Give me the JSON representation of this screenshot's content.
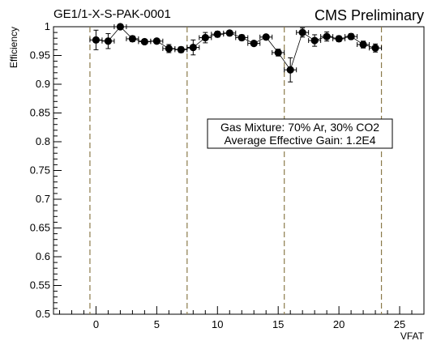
{
  "chart_data": {
    "type": "scatter",
    "title_left": "GE1/1-X-S-PAK-0001",
    "title_right": "CMS Preliminary",
    "xlabel": "VFAT",
    "ylabel": "Efficiency",
    "xlim": [
      -3.5,
      27
    ],
    "ylim": [
      0.5,
      1.0
    ],
    "xticks": [
      0,
      5,
      10,
      15,
      20,
      25
    ],
    "xtick_labels": [
      "0",
      "5",
      "10",
      "15",
      "20",
      "25"
    ],
    "yticks": [
      0.5,
      0.55,
      0.6,
      0.65,
      0.7,
      0.75,
      0.8,
      0.85,
      0.9,
      0.95,
      1.0
    ],
    "ytick_labels": [
      "0.5",
      "0.55",
      "0.6",
      "0.65",
      "0.7",
      "0.75",
      "0.8",
      "0.85",
      "0.9",
      "0.95",
      "1"
    ],
    "grid": false,
    "x_error": 0.5,
    "points": [
      {
        "x": 0,
        "y": 0.977,
        "yerr": 0.017
      },
      {
        "x": 1,
        "y": 0.975,
        "yerr": 0.013
      },
      {
        "x": 2,
        "y": 1.0,
        "yerr": 0.0
      },
      {
        "x": 3,
        "y": 0.979,
        "yerr": 0.005
      },
      {
        "x": 4,
        "y": 0.974,
        "yerr": 0.004
      },
      {
        "x": 5,
        "y": 0.975,
        "yerr": 0.004
      },
      {
        "x": 6,
        "y": 0.962,
        "yerr": 0.007
      },
      {
        "x": 7,
        "y": 0.96,
        "yerr": 0.005
      },
      {
        "x": 8,
        "y": 0.964,
        "yerr": 0.013
      },
      {
        "x": 9,
        "y": 0.981,
        "yerr": 0.009
      },
      {
        "x": 10,
        "y": 0.987,
        "yerr": 0.005
      },
      {
        "x": 11,
        "y": 0.989,
        "yerr": 0.004
      },
      {
        "x": 12,
        "y": 0.981,
        "yerr": 0.005
      },
      {
        "x": 13,
        "y": 0.971,
        "yerr": 0.004
      },
      {
        "x": 14,
        "y": 0.982,
        "yerr": 0.004
      },
      {
        "x": 15,
        "y": 0.955,
        "yerr": 0.006
      },
      {
        "x": 16,
        "y": 0.925,
        "yerr": 0.021
      },
      {
        "x": 17,
        "y": 0.99,
        "yerr": 0.008
      },
      {
        "x": 18,
        "y": 0.976,
        "yerr": 0.01
      },
      {
        "x": 19,
        "y": 0.983,
        "yerr": 0.008
      },
      {
        "x": 20,
        "y": 0.979,
        "yerr": 0.005
      },
      {
        "x": 21,
        "y": 0.983,
        "yerr": 0.005
      },
      {
        "x": 22,
        "y": 0.969,
        "yerr": 0.006
      },
      {
        "x": 23,
        "y": 0.963,
        "yerr": 0.007
      }
    ],
    "separators": [
      -0.5,
      7.5,
      15.5,
      23.5
    ],
    "separator_color": "#8b7a4a",
    "annotation_lines": [
      "Gas Mixture: 70% Ar, 30% CO2",
      "Average Effective Gain: 1.2E4"
    ]
  }
}
